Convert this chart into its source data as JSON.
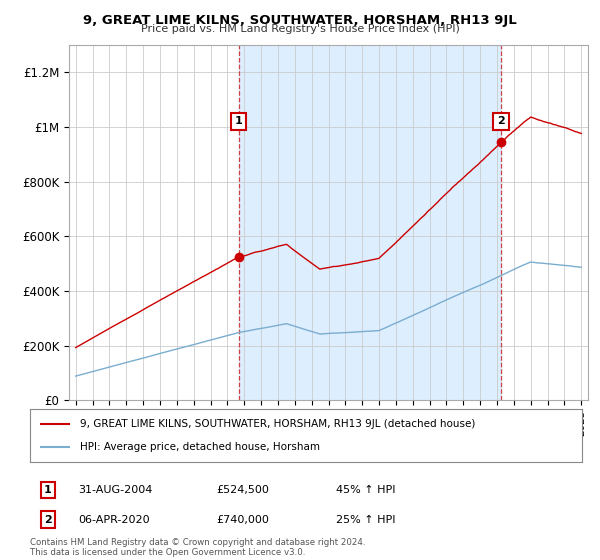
{
  "title": "9, GREAT LIME KILNS, SOUTHWATER, HORSHAM, RH13 9JL",
  "subtitle": "Price paid vs. HM Land Registry's House Price Index (HPI)",
  "legend_label_red": "9, GREAT LIME KILNS, SOUTHWATER, HORSHAM, RH13 9JL (detached house)",
  "legend_label_blue": "HPI: Average price, detached house, Horsham",
  "annotation1_label": "1",
  "annotation1_date": "31-AUG-2004",
  "annotation1_price": "£524,500",
  "annotation1_change": "45% ↑ HPI",
  "annotation2_label": "2",
  "annotation2_date": "06-APR-2020",
  "annotation2_price": "£740,000",
  "annotation2_change": "25% ↑ HPI",
  "footer": "Contains HM Land Registry data © Crown copyright and database right 2024.\nThis data is licensed under the Open Government Licence v3.0.",
  "red_color": "#cc0000",
  "blue_color": "#7aadcf",
  "shade_color": "#ddeeff",
  "dashed_color": "#cc4444",
  "background_color": "#ffffff",
  "grid_color": "#cccccc",
  "ylim": [
    0,
    1300000
  ],
  "yticks": [
    0,
    200000,
    400000,
    600000,
    800000,
    1000000,
    1200000
  ],
  "ytick_labels": [
    "£0",
    "£200K",
    "£400K",
    "£600K",
    "£800K",
    "£1M",
    "£1.2M"
  ],
  "sale1_year": 2004.667,
  "sale1_price": 524500,
  "sale2_year": 2020.25,
  "sale2_price": 740000
}
